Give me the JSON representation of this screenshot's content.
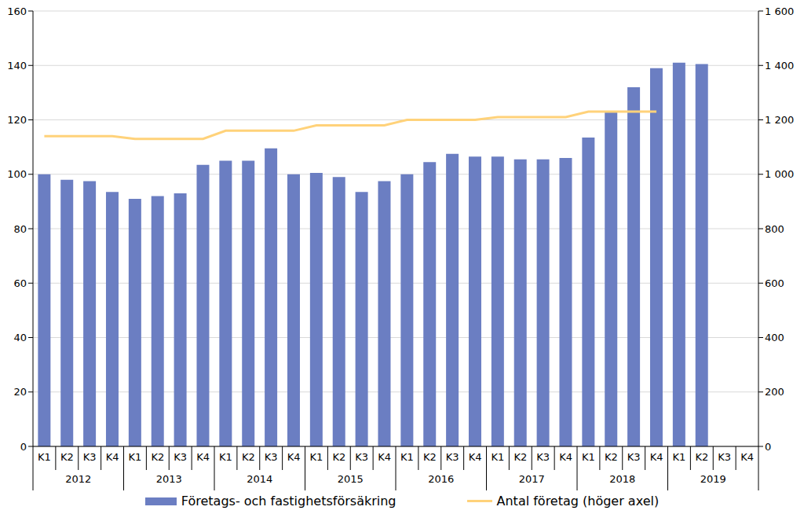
{
  "chart_data": {
    "type": "bar",
    "categories": [
      "K1",
      "K2",
      "K3",
      "K4",
      "K1",
      "K2",
      "K3",
      "K4",
      "K1",
      "K2",
      "K3",
      "K4",
      "K1",
      "K2",
      "K3",
      "K4",
      "K1",
      "K2",
      "K3",
      "K4",
      "K1",
      "K2",
      "K3",
      "K4",
      "K1",
      "K2",
      "K3",
      "K4",
      "K1",
      "K2",
      "K3",
      "K4"
    ],
    "groups": [
      "2012",
      "2013",
      "2014",
      "2015",
      "2016",
      "2017",
      "2018",
      "2019"
    ],
    "series": [
      {
        "name": "Företags- och fastighetsförsäkring",
        "type": "bar",
        "color": "#6b7ec2",
        "values": [
          100,
          98,
          97.5,
          93.5,
          91,
          92,
          93,
          103.5,
          105,
          105,
          109.5,
          100,
          100.5,
          99,
          93.5,
          97.5,
          100,
          104.5,
          107.5,
          106.5,
          106.5,
          105.5,
          105.5,
          106,
          113.5,
          123,
          132,
          139,
          141,
          140.5,
          null,
          null
        ]
      },
      {
        "name": "Antal företag (höger axel)",
        "type": "line",
        "axis": "y2",
        "color": "#ffd27a",
        "values": [
          1140,
          1140,
          1140,
          1140,
          1130,
          1130,
          1130,
          1130,
          1160,
          1160,
          1160,
          1160,
          1180,
          1180,
          1180,
          1180,
          1200,
          1200,
          1200,
          1200,
          1210,
          1210,
          1210,
          1210,
          1230,
          1230,
          1230,
          1230,
          null,
          null,
          null,
          null
        ]
      }
    ],
    "ylim": [
      0,
      160
    ],
    "yticks": [
      0,
      20,
      40,
      60,
      80,
      100,
      120,
      140,
      160
    ],
    "y2lim": [
      0,
      1600
    ],
    "y2ticks": [
      0,
      200,
      400,
      600,
      800,
      {
        "value": 1000,
        "label": "1 000"
      },
      {
        "value": 1200,
        "label": "1 200"
      },
      {
        "value": 1400,
        "label": "1 400"
      },
      {
        "value": 1600,
        "label": "1 600"
      }
    ],
    "grid": true,
    "legend": "bottom"
  }
}
